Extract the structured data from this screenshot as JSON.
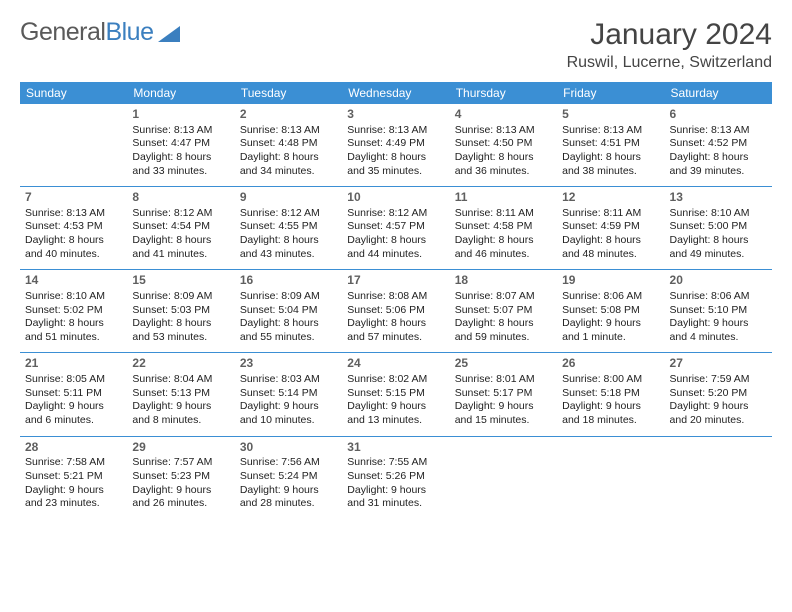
{
  "logo": {
    "text_gray": "General",
    "text_blue": "Blue"
  },
  "title": "January 2024",
  "location": "Ruswil, Lucerne, Switzerland",
  "colors": {
    "header_bg": "#3b8fd4",
    "header_text": "#ffffff",
    "row_divider": "#3b8fd4",
    "logo_gray": "#5a5a5a",
    "logo_blue": "#3b7fbf",
    "body_text": "#222222",
    "daynum": "#5f5f5f",
    "page_bg": "#ffffff"
  },
  "typography": {
    "title_fontsize": 30,
    "location_fontsize": 16,
    "header_fontsize": 12,
    "daynum_fontsize": 12,
    "cell_fontsize": 10.5
  },
  "weekdays": [
    "Sunday",
    "Monday",
    "Tuesday",
    "Wednesday",
    "Thursday",
    "Friday",
    "Saturday"
  ],
  "weeks": [
    [
      null,
      {
        "d": "1",
        "sr": "Sunrise: 8:13 AM",
        "ss": "Sunset: 4:47 PM",
        "dl1": "Daylight: 8 hours",
        "dl2": "and 33 minutes."
      },
      {
        "d": "2",
        "sr": "Sunrise: 8:13 AM",
        "ss": "Sunset: 4:48 PM",
        "dl1": "Daylight: 8 hours",
        "dl2": "and 34 minutes."
      },
      {
        "d": "3",
        "sr": "Sunrise: 8:13 AM",
        "ss": "Sunset: 4:49 PM",
        "dl1": "Daylight: 8 hours",
        "dl2": "and 35 minutes."
      },
      {
        "d": "4",
        "sr": "Sunrise: 8:13 AM",
        "ss": "Sunset: 4:50 PM",
        "dl1": "Daylight: 8 hours",
        "dl2": "and 36 minutes."
      },
      {
        "d": "5",
        "sr": "Sunrise: 8:13 AM",
        "ss": "Sunset: 4:51 PM",
        "dl1": "Daylight: 8 hours",
        "dl2": "and 38 minutes."
      },
      {
        "d": "6",
        "sr": "Sunrise: 8:13 AM",
        "ss": "Sunset: 4:52 PM",
        "dl1": "Daylight: 8 hours",
        "dl2": "and 39 minutes."
      }
    ],
    [
      {
        "d": "7",
        "sr": "Sunrise: 8:13 AM",
        "ss": "Sunset: 4:53 PM",
        "dl1": "Daylight: 8 hours",
        "dl2": "and 40 minutes."
      },
      {
        "d": "8",
        "sr": "Sunrise: 8:12 AM",
        "ss": "Sunset: 4:54 PM",
        "dl1": "Daylight: 8 hours",
        "dl2": "and 41 minutes."
      },
      {
        "d": "9",
        "sr": "Sunrise: 8:12 AM",
        "ss": "Sunset: 4:55 PM",
        "dl1": "Daylight: 8 hours",
        "dl2": "and 43 minutes."
      },
      {
        "d": "10",
        "sr": "Sunrise: 8:12 AM",
        "ss": "Sunset: 4:57 PM",
        "dl1": "Daylight: 8 hours",
        "dl2": "and 44 minutes."
      },
      {
        "d": "11",
        "sr": "Sunrise: 8:11 AM",
        "ss": "Sunset: 4:58 PM",
        "dl1": "Daylight: 8 hours",
        "dl2": "and 46 minutes."
      },
      {
        "d": "12",
        "sr": "Sunrise: 8:11 AM",
        "ss": "Sunset: 4:59 PM",
        "dl1": "Daylight: 8 hours",
        "dl2": "and 48 minutes."
      },
      {
        "d": "13",
        "sr": "Sunrise: 8:10 AM",
        "ss": "Sunset: 5:00 PM",
        "dl1": "Daylight: 8 hours",
        "dl2": "and 49 minutes."
      }
    ],
    [
      {
        "d": "14",
        "sr": "Sunrise: 8:10 AM",
        "ss": "Sunset: 5:02 PM",
        "dl1": "Daylight: 8 hours",
        "dl2": "and 51 minutes."
      },
      {
        "d": "15",
        "sr": "Sunrise: 8:09 AM",
        "ss": "Sunset: 5:03 PM",
        "dl1": "Daylight: 8 hours",
        "dl2": "and 53 minutes."
      },
      {
        "d": "16",
        "sr": "Sunrise: 8:09 AM",
        "ss": "Sunset: 5:04 PM",
        "dl1": "Daylight: 8 hours",
        "dl2": "and 55 minutes."
      },
      {
        "d": "17",
        "sr": "Sunrise: 8:08 AM",
        "ss": "Sunset: 5:06 PM",
        "dl1": "Daylight: 8 hours",
        "dl2": "and 57 minutes."
      },
      {
        "d": "18",
        "sr": "Sunrise: 8:07 AM",
        "ss": "Sunset: 5:07 PM",
        "dl1": "Daylight: 8 hours",
        "dl2": "and 59 minutes."
      },
      {
        "d": "19",
        "sr": "Sunrise: 8:06 AM",
        "ss": "Sunset: 5:08 PM",
        "dl1": "Daylight: 9 hours",
        "dl2": "and 1 minute."
      },
      {
        "d": "20",
        "sr": "Sunrise: 8:06 AM",
        "ss": "Sunset: 5:10 PM",
        "dl1": "Daylight: 9 hours",
        "dl2": "and 4 minutes."
      }
    ],
    [
      {
        "d": "21",
        "sr": "Sunrise: 8:05 AM",
        "ss": "Sunset: 5:11 PM",
        "dl1": "Daylight: 9 hours",
        "dl2": "and 6 minutes."
      },
      {
        "d": "22",
        "sr": "Sunrise: 8:04 AM",
        "ss": "Sunset: 5:13 PM",
        "dl1": "Daylight: 9 hours",
        "dl2": "and 8 minutes."
      },
      {
        "d": "23",
        "sr": "Sunrise: 8:03 AM",
        "ss": "Sunset: 5:14 PM",
        "dl1": "Daylight: 9 hours",
        "dl2": "and 10 minutes."
      },
      {
        "d": "24",
        "sr": "Sunrise: 8:02 AM",
        "ss": "Sunset: 5:15 PM",
        "dl1": "Daylight: 9 hours",
        "dl2": "and 13 minutes."
      },
      {
        "d": "25",
        "sr": "Sunrise: 8:01 AM",
        "ss": "Sunset: 5:17 PM",
        "dl1": "Daylight: 9 hours",
        "dl2": "and 15 minutes."
      },
      {
        "d": "26",
        "sr": "Sunrise: 8:00 AM",
        "ss": "Sunset: 5:18 PM",
        "dl1": "Daylight: 9 hours",
        "dl2": "and 18 minutes."
      },
      {
        "d": "27",
        "sr": "Sunrise: 7:59 AM",
        "ss": "Sunset: 5:20 PM",
        "dl1": "Daylight: 9 hours",
        "dl2": "and 20 minutes."
      }
    ],
    [
      {
        "d": "28",
        "sr": "Sunrise: 7:58 AM",
        "ss": "Sunset: 5:21 PM",
        "dl1": "Daylight: 9 hours",
        "dl2": "and 23 minutes."
      },
      {
        "d": "29",
        "sr": "Sunrise: 7:57 AM",
        "ss": "Sunset: 5:23 PM",
        "dl1": "Daylight: 9 hours",
        "dl2": "and 26 minutes."
      },
      {
        "d": "30",
        "sr": "Sunrise: 7:56 AM",
        "ss": "Sunset: 5:24 PM",
        "dl1": "Daylight: 9 hours",
        "dl2": "and 28 minutes."
      },
      {
        "d": "31",
        "sr": "Sunrise: 7:55 AM",
        "ss": "Sunset: 5:26 PM",
        "dl1": "Daylight: 9 hours",
        "dl2": "and 31 minutes."
      },
      null,
      null,
      null
    ]
  ]
}
